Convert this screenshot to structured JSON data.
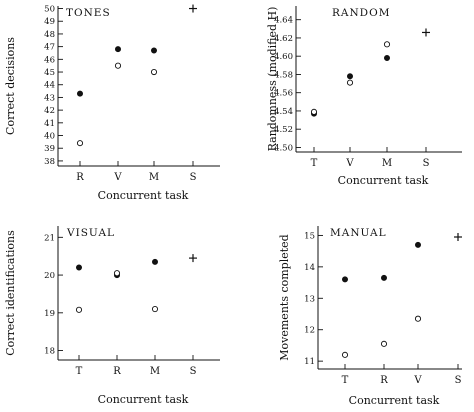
{
  "chart_data": [
    {
      "type": "scatter",
      "title": "TONES",
      "xlabel": "Concurrent task",
      "ylabel": "Correct decisions",
      "categories": [
        "R",
        "V",
        "M",
        "S"
      ],
      "yticks": [
        38,
        39,
        40,
        41,
        42,
        43,
        44,
        45,
        46,
        47,
        48,
        49,
        50
      ],
      "ylim": [
        37.6,
        50.2
      ],
      "grid": false,
      "series": [
        {
          "marker": "filled-circle",
          "values": [
            43.3,
            46.8,
            46.7,
            null
          ]
        },
        {
          "marker": "open-circle",
          "values": [
            39.4,
            45.5,
            45.0,
            null
          ]
        },
        {
          "marker": "plus",
          "values": [
            null,
            null,
            null,
            50.0
          ]
        }
      ]
    },
    {
      "type": "scatter",
      "title": "RANDOM",
      "xlabel": "Concurrent task",
      "ylabel": "Randomness (modified H)",
      "categories": [
        "T",
        "V",
        "M",
        "S"
      ],
      "yticks": [
        "4.50",
        "4.52",
        "4.54",
        "4.56",
        "4.58",
        "4.60",
        "4.62",
        "4.64"
      ],
      "ylim": [
        4.495,
        4.655
      ],
      "grid": false,
      "series": [
        {
          "marker": "filled-circle",
          "values": [
            4.537,
            4.578,
            4.598,
            null
          ]
        },
        {
          "marker": "open-circle",
          "values": [
            4.539,
            4.571,
            4.613,
            null
          ]
        },
        {
          "marker": "plus",
          "values": [
            null,
            null,
            null,
            4.626
          ]
        }
      ]
    },
    {
      "type": "scatter",
      "title": "VISUAL",
      "xlabel": "Concurrent task",
      "ylabel": "Correct identifications",
      "categories": [
        "T",
        "R",
        "M",
        "S"
      ],
      "yticks": [
        18,
        19,
        20,
        21
      ],
      "ylim": [
        17.75,
        21.3
      ],
      "grid": false,
      "series": [
        {
          "marker": "filled-circle",
          "values": [
            20.2,
            20.0,
            20.35,
            null
          ]
        },
        {
          "marker": "open-circle",
          "values": [
            19.08,
            20.05,
            19.1,
            null
          ]
        },
        {
          "marker": "plus",
          "values": [
            null,
            null,
            null,
            20.45
          ]
        }
      ]
    },
    {
      "type": "scatter",
      "title": "MANUAL",
      "xlabel": "Concurrent task",
      "ylabel": "Movements completed",
      "categories": [
        "T",
        "R",
        "V",
        "S"
      ],
      "yticks": [
        11,
        12,
        13,
        14,
        15
      ],
      "ylim": [
        10.75,
        15.3
      ],
      "grid": false,
      "series": [
        {
          "marker": "filled-circle",
          "values": [
            13.6,
            13.65,
            14.7,
            null
          ]
        },
        {
          "marker": "open-circle",
          "values": [
            11.2,
            11.55,
            12.35,
            null
          ]
        },
        {
          "marker": "plus",
          "values": [
            null,
            null,
            null,
            14.95
          ]
        }
      ]
    }
  ]
}
